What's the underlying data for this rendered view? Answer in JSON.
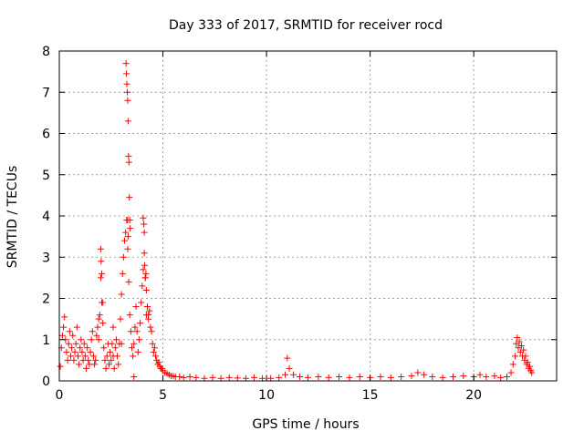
{
  "chart_data": {
    "type": "scatter",
    "title": "Day 333 of 2017, SRMTID for receiver rocd",
    "xlabel": "GPS time / hours",
    "ylabel": "SRMTID / TECUs",
    "xlim": [
      0,
      24
    ],
    "ylim": [
      0,
      8
    ],
    "xticks": [
      0,
      5,
      10,
      15,
      20
    ],
    "yticks": [
      0,
      1,
      2,
      3,
      4,
      5,
      6,
      7,
      8
    ],
    "xtick_labels": [
      "0",
      "5",
      "10",
      "15",
      "20"
    ],
    "ytick_labels": [
      "0",
      "1",
      "2",
      "3",
      "4",
      "5",
      "6",
      "7",
      "8"
    ],
    "grid": true,
    "marker": "+",
    "series": [
      {
        "name": "SRMTID",
        "color": "#ff0000",
        "x": [
          0.05,
          0.1,
          0.15,
          0.2,
          0.25,
          0.3,
          0.35,
          0.4,
          0.45,
          0.5,
          0.55,
          0.6,
          0.65,
          0.7,
          0.75,
          0.8,
          0.85,
          0.9,
          0.95,
          1.0,
          1.05,
          1.1,
          1.15,
          1.2,
          1.25,
          1.3,
          1.35,
          1.4,
          1.45,
          1.5,
          1.55,
          1.6,
          1.65,
          1.7,
          1.75,
          1.8,
          1.85,
          1.9,
          1.95,
          2.0,
          2.05,
          2.1,
          2.15,
          2.2,
          2.25,
          2.3,
          2.35,
          2.4,
          2.45,
          2.5,
          2.55,
          2.6,
          2.65,
          2.7,
          2.75,
          2.8,
          2.85,
          2.9,
          2.95,
          3.0,
          3.05,
          3.1,
          3.15,
          3.2,
          3.25,
          3.3,
          3.35,
          3.4,
          3.45,
          3.5,
          3.55,
          3.6,
          3.65,
          3.7,
          3.75,
          3.8,
          3.85,
          3.9,
          3.95,
          4.0,
          4.05,
          4.1,
          4.15,
          4.2,
          4.25,
          4.3,
          4.35,
          4.4,
          4.45,
          4.5,
          4.55,
          4.6,
          4.65,
          4.7,
          4.75,
          4.8,
          4.85,
          4.9,
          4.95,
          5.0,
          5.1,
          5.2,
          5.3,
          5.4,
          5.5,
          5.6,
          5.8,
          6.0,
          6.3,
          6.6,
          7.0,
          7.4,
          7.8,
          8.2,
          8.6,
          9.0,
          9.4,
          9.8,
          10.2,
          10.6,
          10.9,
          11.0,
          11.1,
          11.3,
          11.6,
          12.0,
          12.5,
          13.0,
          13.5,
          14.0,
          14.5,
          15.0,
          15.5,
          16.0,
          16.5,
          17.0,
          17.3,
          17.6,
          18.0,
          18.5,
          19.0,
          19.5,
          20.0,
          20.3,
          20.6,
          21.0,
          21.3,
          21.6,
          21.8,
          21.9,
          22.0,
          22.05,
          22.1,
          22.15,
          22.2,
          22.25,
          22.3,
          22.35,
          22.4,
          22.45,
          22.5,
          22.55,
          22.6,
          22.65,
          22.7,
          22.75,
          22.8,
          2.0,
          2.02,
          2.05,
          3.22,
          3.24,
          3.26,
          3.28,
          3.3,
          3.32,
          3.34,
          3.36,
          3.38,
          3.4,
          3.42,
          3.3,
          3.32,
          4.05,
          4.08,
          4.1,
          4.12,
          4.15,
          4.18,
          4.2,
          1.9,
          2.1,
          2.6,
          3.0,
          3.6,
          4.3
        ],
        "y": [
          0.35,
          0.8,
          1.1,
          1.3,
          1.55,
          1.0,
          0.7,
          0.5,
          0.9,
          1.2,
          0.6,
          0.8,
          1.1,
          0.5,
          0.7,
          0.9,
          1.3,
          0.6,
          0.4,
          0.8,
          1.0,
          0.7,
          0.5,
          0.9,
          0.6,
          0.3,
          0.8,
          0.5,
          0.4,
          0.7,
          1.0,
          1.2,
          0.6,
          0.4,
          0.5,
          1.1,
          1.3,
          1.5,
          1.6,
          2.5,
          1.9,
          1.4,
          0.8,
          0.5,
          0.3,
          0.6,
          0.9,
          0.4,
          0.7,
          0.5,
          0.9,
          0.6,
          0.3,
          0.8,
          1.0,
          0.6,
          0.4,
          0.9,
          1.5,
          2.1,
          2.6,
          3.0,
          3.4,
          3.6,
          3.9,
          3.2,
          2.4,
          1.6,
          1.2,
          0.8,
          0.6,
          0.9,
          1.3,
          1.8,
          1.2,
          0.7,
          1.0,
          1.4,
          1.9,
          2.3,
          2.7,
          3.1,
          2.5,
          1.6,
          1.8,
          1.5,
          1.7,
          1.3,
          1.2,
          0.9,
          0.7,
          0.8,
          0.6,
          0.5,
          0.4,
          0.45,
          0.35,
          0.3,
          0.3,
          0.25,
          0.2,
          0.18,
          0.15,
          0.12,
          0.12,
          0.1,
          0.1,
          0.08,
          0.1,
          0.08,
          0.06,
          0.08,
          0.06,
          0.08,
          0.07,
          0.06,
          0.08,
          0.06,
          0.06,
          0.08,
          0.15,
          0.55,
          0.3,
          0.15,
          0.1,
          0.08,
          0.1,
          0.08,
          0.1,
          0.08,
          0.1,
          0.08,
          0.1,
          0.08,
          0.1,
          0.12,
          0.2,
          0.15,
          0.1,
          0.08,
          0.1,
          0.12,
          0.1,
          0.15,
          0.1,
          0.12,
          0.08,
          0.1,
          0.2,
          0.4,
          0.6,
          0.9,
          1.05,
          0.8,
          0.95,
          0.7,
          0.85,
          0.6,
          0.75,
          0.5,
          0.6,
          0.4,
          0.45,
          0.3,
          0.35,
          0.25,
          0.2,
          3.2,
          2.9,
          2.6,
          7.7,
          7.45,
          7.2,
          7.0,
          6.8,
          6.3,
          5.45,
          5.3,
          4.45,
          3.9,
          3.7,
          3.9,
          3.5,
          3.95,
          3.8,
          3.6,
          2.8,
          2.5,
          2.6,
          2.2,
          1.0,
          1.9,
          1.3,
          0.9,
          0.1,
          1.6
        ]
      }
    ]
  }
}
